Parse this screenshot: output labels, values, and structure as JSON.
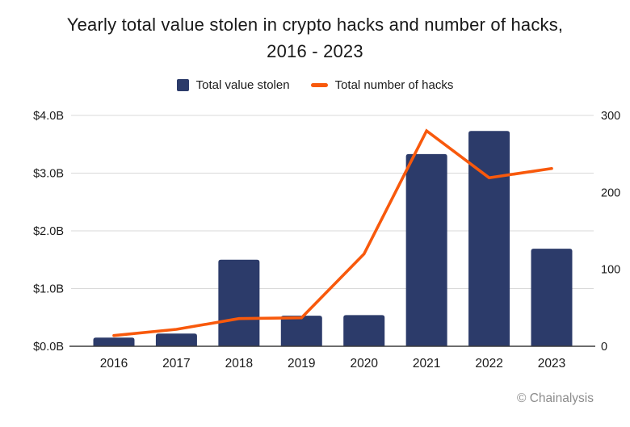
{
  "title": {
    "line1": "Yearly total value stolen in crypto hacks and number of hacks,",
    "line2": "2016 - 2023"
  },
  "footer": {
    "credit": "© Chainalysis"
  },
  "colors": {
    "bar": "#2c3b6a",
    "line": "#f8590c",
    "grid": "#d9d9d9",
    "axis": "#3d3d3d",
    "text": "#1a1a1a",
    "muted": "#8c8c8c",
    "background": "#ffffff"
  },
  "chart_data": {
    "type": "bar",
    "subtype": "combo-bar-line-dual-axis",
    "title": "Yearly total value stolen in crypto hacks and number of hacks, 2016 - 2023",
    "categories": [
      "2016",
      "2017",
      "2018",
      "2019",
      "2020",
      "2021",
      "2022",
      "2023"
    ],
    "series": [
      {
        "name": "Total value stolen",
        "type": "bar",
        "axis": "left",
        "unit": "billion USD",
        "color": "#2c3b6a",
        "values": [
          0.15,
          0.22,
          1.5,
          0.53,
          0.54,
          3.33,
          3.73,
          1.69
        ]
      },
      {
        "name": "Total number of hacks",
        "type": "line",
        "axis": "right",
        "unit": "hacks",
        "color": "#f8590c",
        "values": [
          14,
          22,
          36,
          37,
          120,
          280,
          219,
          231
        ]
      }
    ],
    "left_axis": {
      "tick_labels": [
        "$4.0B",
        "$3.0B",
        "$2.0B",
        "$1.0B",
        "$0.0B"
      ],
      "tick_values": [
        4,
        3,
        2,
        1,
        0
      ],
      "range": [
        0,
        4
      ]
    },
    "right_axis": {
      "tick_labels": [
        "300",
        "200",
        "100",
        "0"
      ],
      "tick_values": [
        300,
        200,
        100,
        0
      ],
      "range": [
        0,
        300
      ]
    },
    "grid": "horizontal gridlines at left-axis ticks only",
    "legend_position": "top center",
    "annotation": "© Chainalysis"
  }
}
